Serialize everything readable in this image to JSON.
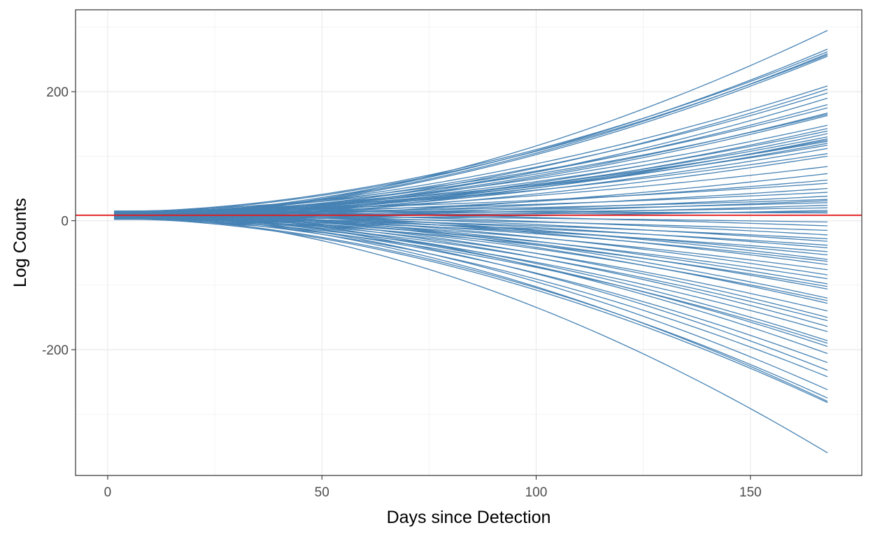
{
  "chart_data": {
    "type": "line",
    "title": "",
    "xlabel": "Days since Detection",
    "ylabel": "Log Counts",
    "xlim": [
      -7.5,
      176
    ],
    "ylim": [
      -395,
      327
    ],
    "x_ticks": [
      0,
      50,
      100,
      150
    ],
    "x_tick_labels": [
      "0",
      "50",
      "100",
      "150"
    ],
    "y_ticks": [
      -200,
      0,
      200
    ],
    "y_tick_labels": [
      "-200",
      "0",
      "200"
    ],
    "grid": true,
    "legend": "none",
    "series_color": "#4682B4",
    "reference_line": {
      "y": 8.5,
      "color": "#E31A1C"
    },
    "x_range": [
      1.5,
      168
    ],
    "start_band": [
      2,
      15
    ],
    "end_values": [
      295,
      266,
      262,
      259,
      257,
      255,
      209,
      204,
      198,
      190,
      180,
      175,
      167,
      165,
      163,
      148,
      143,
      139,
      135,
      130,
      127,
      125,
      123,
      120,
      117,
      112,
      104,
      100,
      84,
      73,
      63,
      58,
      50,
      44,
      38,
      33,
      31,
      28,
      24,
      20,
      16,
      14,
      12,
      -2,
      -8,
      -15,
      -22,
      -28,
      -32,
      -38,
      -42,
      -48,
      -53,
      -60,
      -63,
      -68,
      -76,
      -84,
      -90,
      -98,
      -102,
      -106,
      -120,
      -124,
      -128,
      -140,
      -150,
      -155,
      -164,
      -172,
      -186,
      -190,
      -195,
      -206,
      -220,
      -232,
      -242,
      -262,
      -275,
      -280,
      -282,
      -360
    ]
  }
}
